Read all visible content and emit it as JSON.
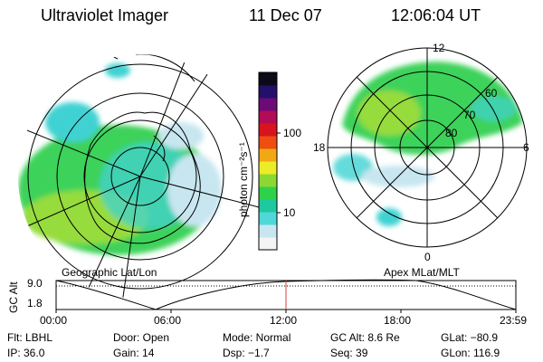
{
  "header": {
    "title": "Ultraviolet Imager",
    "date": "11 Dec 07",
    "time": "12:06:04 UT"
  },
  "colorbar": {
    "unit_label": "photon cm⁻²s⁻¹",
    "ticks": [
      {
        "label": "100",
        "value": 100
      },
      {
        "label": "10",
        "value": 10
      }
    ],
    "colors": [
      "#f4f4f4",
      "#c8e6f0",
      "#4fd8d8",
      "#1ec8a0",
      "#2ed24a",
      "#8cd832",
      "#ecec28",
      "#f2a814",
      "#ee4e10",
      "#d8141e",
      "#b00c58",
      "#6e0a78",
      "#24106a",
      "#0a0a18"
    ]
  },
  "left_panel": {
    "caption": "Geographic Lat/Lon"
  },
  "right_panel": {
    "caption": "Apex MLat/MLT",
    "mlt_labels": {
      "top": "12",
      "bottom": "0",
      "left": "18",
      "right": "6"
    },
    "lat_labels": [
      "60",
      "70",
      "80"
    ]
  },
  "altitude_plot": {
    "ylabel": "GC Alt",
    "y_ticks": [
      "9.0",
      "1.8"
    ],
    "x_ticks": [
      "00:00",
      "06:00",
      "12:00",
      "18:00",
      "23:59"
    ],
    "current_time_marker": "12:06",
    "marker_color": "#d04040"
  },
  "info": {
    "row1": [
      "Flt: LBHL",
      "Door: Open",
      "Mode: Normal",
      "GC Alt: 8.6 Re",
      "GLat: −80.9"
    ],
    "row2": [
      "IP: 36.0",
      "Gain: 14",
      "Dsp:    −1.7",
      "Seq: 39",
      "GLon: 116.9"
    ]
  },
  "colors": {
    "aurora_green": "#3cd25a",
    "aurora_yellow_green": "#96dc3c",
    "aurora_cyan": "#40d2d2",
    "background": "#ffffff"
  }
}
